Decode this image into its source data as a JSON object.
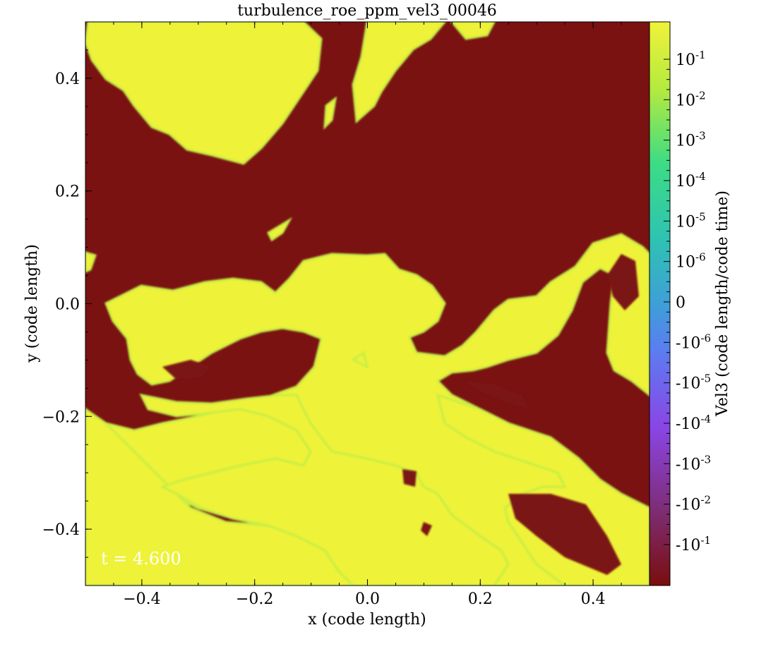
{
  "chart_data": {
    "type": "heatmap",
    "title": "turbulence_roe_ppm_vel3_00046",
    "xlabel": "x  (code length)",
    "ylabel": "y  (code length)",
    "colorbar_label": "Vel3  (code length/code time)",
    "xlim": [
      -0.5,
      0.5
    ],
    "ylim": [
      -0.5,
      0.5
    ],
    "x_ticks": [
      {
        "value": -0.4,
        "label": "−0.4"
      },
      {
        "value": -0.2,
        "label": "−0.2"
      },
      {
        "value": 0.0,
        "label": "0.0"
      },
      {
        "value": 0.2,
        "label": "0.2"
      },
      {
        "value": 0.4,
        "label": "0.4"
      }
    ],
    "y_ticks": [
      {
        "value": -0.4,
        "label": "−0.4"
      },
      {
        "value": -0.2,
        "label": "−0.2"
      },
      {
        "value": 0.0,
        "label": "0.0"
      },
      {
        "value": 0.2,
        "label": "0.2"
      },
      {
        "value": 0.4,
        "label": "0.4"
      }
    ],
    "colorbar_scale": "symlog",
    "colorbar_ticks": [
      {
        "base": "10",
        "exp": "-1",
        "sign": ""
      },
      {
        "base": "10",
        "exp": "-2",
        "sign": ""
      },
      {
        "base": "10",
        "exp": "-3",
        "sign": ""
      },
      {
        "base": "10",
        "exp": "-4",
        "sign": ""
      },
      {
        "base": "10",
        "exp": "-5",
        "sign": ""
      },
      {
        "base": "10",
        "exp": "-6",
        "sign": ""
      },
      {
        "base": "0",
        "exp": "",
        "sign": ""
      },
      {
        "base": "10",
        "exp": "-6",
        "sign": "-"
      },
      {
        "base": "10",
        "exp": "-5",
        "sign": "-"
      },
      {
        "base": "10",
        "exp": "-4",
        "sign": "-"
      },
      {
        "base": "10",
        "exp": "-3",
        "sign": "-"
      },
      {
        "base": "10",
        "exp": "-2",
        "sign": "-"
      },
      {
        "base": "10",
        "exp": "-1",
        "sign": "-"
      }
    ],
    "colormap": [
      "#7a0d0d",
      "#7d2a6a",
      "#8a45e6",
      "#5a7ef0",
      "#3e9fd8",
      "#2ec4b0",
      "#3ddc84",
      "#b4ea3e",
      "#f0f23a"
    ],
    "background_color": "#7a1212",
    "positive_color": "#eef238",
    "annotation": "t = 4.600",
    "grid": false
  }
}
